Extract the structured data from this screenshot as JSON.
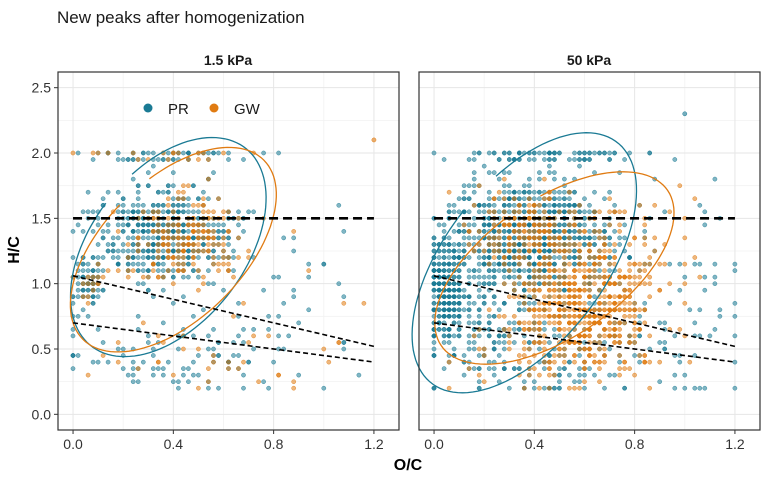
{
  "chart_data": {
    "type": "scatter",
    "title": "New peaks after homogenization",
    "xlabel": "O/C",
    "ylabel": "H/C",
    "xlim": [
      -0.06,
      1.3
    ],
    "ylim": [
      -0.12,
      2.62
    ],
    "x_ticks": [
      0.0,
      0.4,
      0.8,
      1.2
    ],
    "x_tick_labels": [
      "0.0",
      "0.4",
      "0.8",
      "1.2"
    ],
    "y_ticks": [
      0.0,
      0.5,
      1.0,
      1.5,
      2.0,
      2.5
    ],
    "y_tick_labels": [
      "0.0",
      "0.5",
      "1.0",
      "1.5",
      "2.0",
      "2.5"
    ],
    "grid": true,
    "legend": {
      "placement": "top-left inside first panel",
      "entries": [
        {
          "label": "PR",
          "color": "#1a7a94"
        },
        {
          "label": "GW",
          "color": "#e07b12"
        }
      ]
    },
    "reference_lines": [
      {
        "style": "dashed",
        "color": "#000000",
        "x": [
          0.0,
          1.2
        ],
        "y": [
          1.5,
          1.5
        ]
      },
      {
        "style": "dashed",
        "color": "#000000",
        "x": [
          0.0,
          1.2
        ],
        "y": [
          1.06,
          0.52
        ]
      },
      {
        "style": "dashed",
        "color": "#000000",
        "x": [
          0.0,
          1.2
        ],
        "y": [
          0.7,
          0.4
        ]
      }
    ],
    "panels": [
      {
        "label": "1.5 kPa",
        "series": [
          {
            "name": "PR",
            "color": "#1a7a94",
            "clusters": [
              {
                "cx": 0.37,
                "cy": 1.38,
                "sx": 0.13,
                "sy": 0.18,
                "n": 520
              },
              {
                "cx": 0.06,
                "cy": 1.0,
                "sx": 0.03,
                "sy": 0.12,
                "n": 80
              },
              {
                "cx": 0.35,
                "cy": 1.98,
                "sx": 0.18,
                "sy": 0.015,
                "n": 55
              },
              {
                "cx": 0.45,
                "cy": 0.45,
                "sx": 0.25,
                "sy": 0.15,
                "n": 90
              },
              {
                "cx": 0.8,
                "cy": 0.9,
                "sx": 0.22,
                "sy": 0.4,
                "n": 45
              }
            ],
            "ellipse": {
              "cx": 0.38,
              "cy": 1.28,
              "rx": 0.34,
              "ry": 0.86,
              "angle": -14
            }
          },
          {
            "name": "GW",
            "color": "#e07b12",
            "clusters": [
              {
                "cx": 0.43,
                "cy": 1.35,
                "sx": 0.11,
                "sy": 0.17,
                "n": 190
              },
              {
                "cx": 0.35,
                "cy": 1.98,
                "sx": 0.15,
                "sy": 0.015,
                "n": 18
              },
              {
                "cx": 0.5,
                "cy": 0.45,
                "sx": 0.25,
                "sy": 0.15,
                "n": 30
              },
              {
                "cx": 0.08,
                "cy": 1.05,
                "sx": 0.03,
                "sy": 0.1,
                "n": 15
              },
              {
                "cx": 0.9,
                "cy": 1.0,
                "sx": 0.2,
                "sy": 0.5,
                "n": 14
              }
            ],
            "points": [
              {
                "x": 1.2,
                "y": 2.1
              }
            ],
            "ellipse": {
              "cx": 0.4,
              "cy": 1.26,
              "rx": 0.33,
              "ry": 0.82,
              "angle": -19
            }
          }
        ]
      },
      {
        "label": "50 kPa",
        "series": [
          {
            "name": "PR",
            "color": "#1a7a94",
            "clusters": [
              {
                "cx": 0.38,
                "cy": 1.35,
                "sx": 0.16,
                "sy": 0.22,
                "n": 900
              },
              {
                "cx": 0.05,
                "cy": 0.95,
                "sx": 0.035,
                "sy": 0.18,
                "n": 260
              },
              {
                "cx": 0.45,
                "cy": 1.98,
                "sx": 0.2,
                "sy": 0.015,
                "n": 80
              },
              {
                "cx": 0.45,
                "cy": 0.5,
                "sx": 0.28,
                "sy": 0.2,
                "n": 200
              },
              {
                "cx": 0.9,
                "cy": 1.05,
                "sx": 0.25,
                "sy": 0.4,
                "n": 80
              },
              {
                "cx": 0.2,
                "cy": 0.8,
                "sx": 0.12,
                "sy": 0.25,
                "n": 120
              }
            ],
            "points": [
              {
                "x": 1.0,
                "y": 2.3
              }
            ],
            "ellipse": {
              "cx": 0.36,
              "cy": 1.16,
              "rx": 0.36,
              "ry": 1.03,
              "angle": -16
            }
          },
          {
            "name": "GW",
            "color": "#e07b12",
            "clusters": [
              {
                "cx": 0.6,
                "cy": 0.85,
                "sx": 0.13,
                "sy": 0.22,
                "n": 520
              },
              {
                "cx": 0.4,
                "cy": 1.4,
                "sx": 0.12,
                "sy": 0.15,
                "n": 200
              },
              {
                "cx": 0.55,
                "cy": 0.4,
                "sx": 0.2,
                "sy": 0.12,
                "n": 80
              },
              {
                "cx": 0.85,
                "cy": 1.2,
                "sx": 0.12,
                "sy": 0.25,
                "n": 40
              }
            ],
            "ellipse": {
              "cx": 0.48,
              "cy": 1.12,
              "rx": 0.36,
              "ry": 0.8,
              "angle": -26
            }
          }
        ]
      }
    ]
  }
}
